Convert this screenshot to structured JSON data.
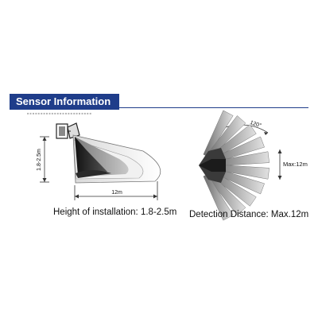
{
  "header": {
    "title": "Sensor Information",
    "bar_color": "#1f3d8a"
  },
  "side_view": {
    "height_label": "1.8-2.5m",
    "distance_label": "12m",
    "caption": "Height of installation: 1.8-2.5m"
  },
  "top_view": {
    "angle_label": "120°",
    "max_label": "Max:12m",
    "caption": "Detection Distance: Max.12m"
  },
  "icons": [
    "sensor-device-icon"
  ]
}
